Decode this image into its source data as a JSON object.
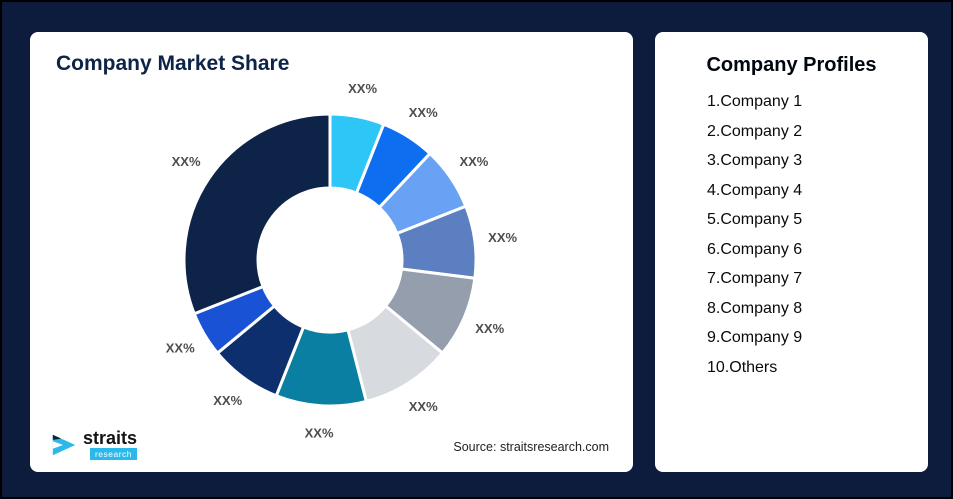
{
  "window": {
    "background_color": "#0d1c3c"
  },
  "market_share_card": {
    "title": "Company Market Share",
    "source_note": "Source: straitsresearch.com",
    "logo": {
      "brand": "straits",
      "sub_brand": "research",
      "accent_color": "#2bb9ea"
    }
  },
  "profiles_card": {
    "title": "Company Profiles",
    "items": [
      "1.Company 1",
      "2.Company 2",
      "3.Company 3",
      "4.Company 4",
      "5.Company 5",
      "6.Company 6",
      "7.Company 7",
      "8.Company 8",
      "9.Company 9",
      "10.Others"
    ]
  },
  "chart_data": {
    "type": "pie",
    "subtype": "donut",
    "title": "Company Market Share",
    "start_angle_deg": -90,
    "direction": "clockwise",
    "data_labels_shown": "XX%",
    "legend_position": "none",
    "segments": [
      {
        "name": "Company 1",
        "label": "XX%",
        "value": 6,
        "color": "#2ec6f7"
      },
      {
        "name": "Company 2",
        "label": "XX%",
        "value": 6,
        "color": "#0e6ef0"
      },
      {
        "name": "Company 3",
        "label": "XX%",
        "value": 7,
        "color": "#69a1f4"
      },
      {
        "name": "Company 4",
        "label": "XX%",
        "value": 8,
        "color": "#5b7fc0"
      },
      {
        "name": "Company 5",
        "label": "XX%",
        "value": 9,
        "color": "#959ead"
      },
      {
        "name": "Company 6",
        "label": "XX%",
        "value": 10,
        "color": "#d7dadf"
      },
      {
        "name": "Company 7",
        "label": "XX%",
        "value": 10,
        "color": "#0a7fa2"
      },
      {
        "name": "Company 8",
        "label": "XX%",
        "value": 8,
        "color": "#0d2f6e"
      },
      {
        "name": "Company 9",
        "label": "XX%",
        "value": 5,
        "color": "#1a52d6"
      },
      {
        "name": "Others",
        "label": "XX%",
        "value": 31,
        "color": "#0d2348"
      }
    ]
  }
}
